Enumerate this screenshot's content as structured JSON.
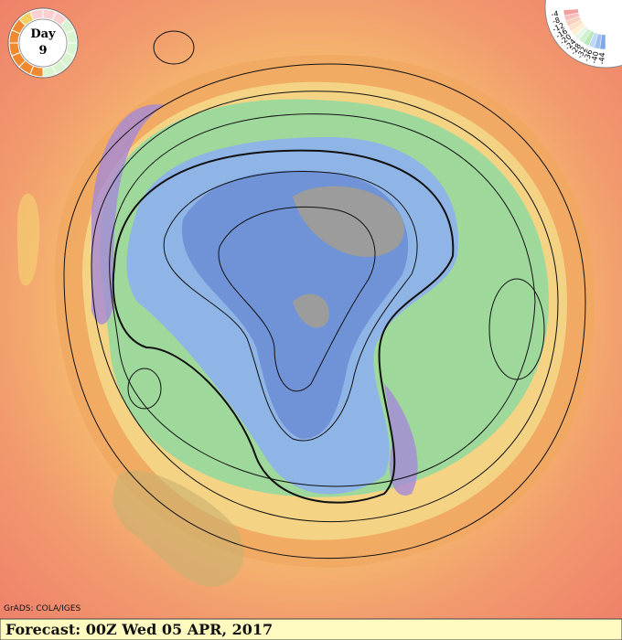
{
  "dial": {
    "label": "Day",
    "day": "9"
  },
  "scale": {
    "labels": [
      "-4",
      "-8",
      "-12",
      "-16",
      "-20",
      "-24",
      "-28",
      "-32",
      "-36",
      "-40",
      "-44"
    ]
  },
  "credit": "GrADS: COLA/IGES",
  "footer": "Forecast: 00Z Wed 05 APR, 2017"
}
